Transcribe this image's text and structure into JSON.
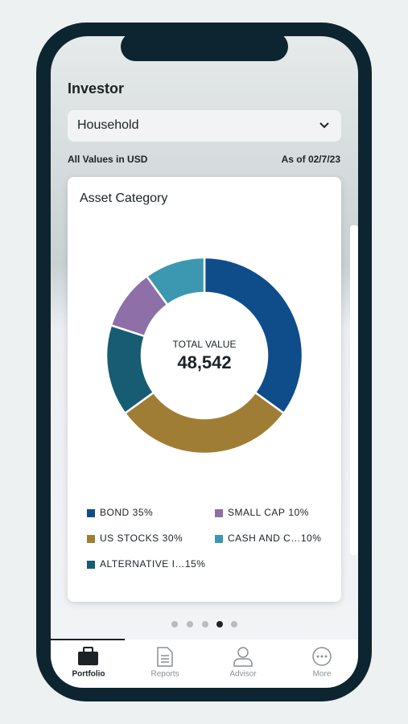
{
  "header": {
    "title": "Investor"
  },
  "dropdown": {
    "value": "Household"
  },
  "info": {
    "units": "All Values in USD",
    "date": "As of 02/7/23"
  },
  "chart_data": {
    "type": "pie",
    "title": "Asset Category",
    "center_label": "TOTAL VALUE",
    "center_value": "48,542",
    "categories": [
      "BOND",
      "US STOCKS",
      "ALTERNATIVE I…",
      "SMALL CAP",
      "CASH AND C…"
    ],
    "values": [
      35,
      30,
      15,
      10,
      10
    ],
    "value_labels": [
      "35%",
      "30%",
      "15%",
      "10%",
      "10%"
    ],
    "colors": [
      "#0f4c8a",
      "#a07d35",
      "#175c72",
      "#8e6fa8",
      "#3b98b0"
    ]
  },
  "tabs": [
    {
      "label": "Portfolio"
    },
    {
      "label": "Reports"
    },
    {
      "label": "Advisor"
    },
    {
      "label": "More"
    }
  ]
}
